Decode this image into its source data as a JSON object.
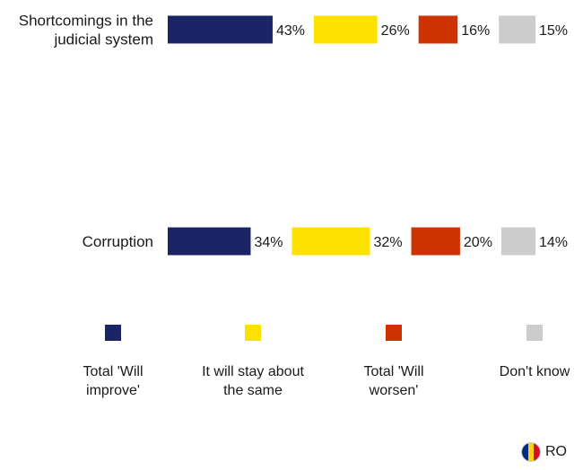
{
  "chart_data": {
    "type": "bar",
    "orientation": "horizontal-stacked",
    "categories": [
      {
        "lines": [
          "Shortcomings in the",
          "judicial system"
        ]
      },
      {
        "lines": [
          "Corruption"
        ]
      }
    ],
    "series": [
      {
        "name": [
          "Total 'Will",
          "improve'"
        ],
        "color": "#1b2466",
        "values": [
          43,
          34
        ]
      },
      {
        "name": [
          "It will stay about",
          "the same"
        ],
        "color": "#ffe100",
        "values": [
          26,
          32
        ]
      },
      {
        "name": [
          "Total 'Will",
          "worsen'"
        ],
        "color": "#cc3300",
        "values": [
          16,
          20
        ]
      },
      {
        "name": [
          "Don't know"
        ],
        "color": "#cccccc",
        "values": [
          15,
          14
        ]
      }
    ],
    "value_suffix": "%",
    "legend_position": "bottom",
    "grid": false
  },
  "footer": {
    "country_code": "RO",
    "flag_colors": [
      "#002b7f",
      "#fcd116",
      "#ce1126"
    ]
  }
}
